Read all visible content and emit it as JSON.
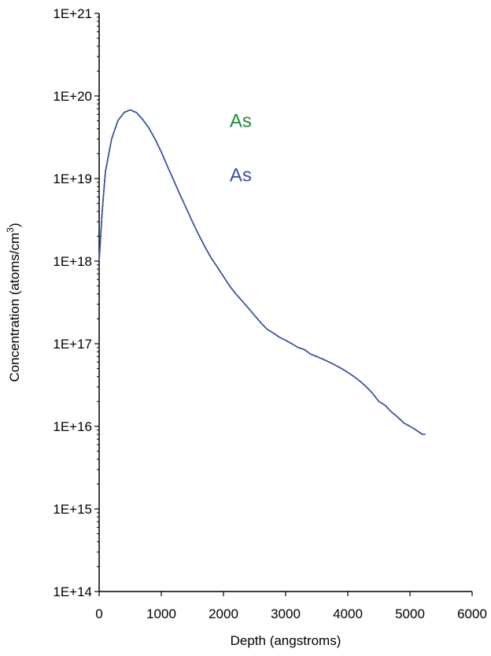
{
  "chart_data": {
    "type": "line",
    "title": "",
    "xlabel": "Depth (angstroms)",
    "ylabel": "Concentration (atoms/cm",
    "ylabel_superscript": "3",
    "ylabel_suffix": ")",
    "x_scale": "linear",
    "y_scale": "log",
    "xlim": [
      0,
      6000
    ],
    "ylim": [
      100000000000000.0,
      1e+21
    ],
    "x_ticks": [
      0,
      1000,
      2000,
      3000,
      4000,
      5000,
      6000
    ],
    "x_tick_labels": [
      "0",
      "1000",
      "2000",
      "3000",
      "4000",
      "5000",
      "6000"
    ],
    "y_ticks": [
      100000000000000.0,
      1000000000000000.0,
      1e+16,
      1e+17,
      1e+18,
      1e+19,
      1e+20,
      1e+21
    ],
    "y_tick_labels": [
      "1E+14",
      "1E+15",
      "1E+16",
      "1E+17",
      "1E+18",
      "1E+19",
      "1E+20",
      "1E+21"
    ],
    "grid": false,
    "legend": "inline labels",
    "series": [
      {
        "name": "As",
        "color": "#1e8a3c",
        "x": [
          0,
          50,
          100,
          200,
          300,
          400,
          500,
          600,
          700,
          800,
          900,
          1000,
          1100,
          1200,
          1300,
          1400,
          1500,
          1600,
          1700,
          1800,
          1900,
          2000,
          2100,
          2200,
          2300,
          2400,
          2500,
          2600,
          2700,
          2800,
          2900,
          3000,
          3100,
          3200,
          3300,
          3400,
          3500,
          3600,
          3700,
          3800,
          3900,
          4000,
          4100,
          4200,
          4300,
          4400,
          4500,
          4600,
          4700,
          4800,
          4900,
          5000,
          5100,
          5200
        ],
        "y": [
          1e+18,
          4e+18,
          1.2e+19,
          3e+19,
          5e+19,
          6.3e+19,
          6.8e+19,
          6.3e+19,
          5.2e+19,
          4.1e+19,
          3e+19,
          2.1e+19,
          1.4e+19,
          9.5e+18,
          6.4e+18,
          4.4e+18,
          3e+18,
          2.1e+18,
          1.5e+18,
          1.1e+18,
          8.5e+17,
          6.5e+17,
          5e+17,
          4e+17,
          3.3e+17,
          2.7e+17,
          2.2e+17,
          1.8e+17,
          1.5e+17,
          1.35e+17,
          1.2e+17,
          1.1e+17,
          1e+17,
          9e+16,
          8.5e+16,
          7.5e+16,
          7e+16,
          6.5e+16,
          6e+16,
          5.5e+16,
          5e+16,
          4.5e+16,
          4e+16,
          3.5e+16,
          3e+16,
          2.5e+16,
          2e+16,
          1.8e+16,
          1.5e+16,
          1.3e+16,
          1.1e+16,
          1e+16,
          9000000000000000.0,
          8000000000000000.0
        ]
      },
      {
        "name": "As",
        "color": "#3a4fa3",
        "x": [
          0,
          50,
          100,
          200,
          300,
          400,
          500,
          600,
          700,
          800,
          900,
          1000,
          1100,
          1200,
          1300,
          1400,
          1500,
          1600,
          1700,
          1800,
          1900,
          2000,
          2100,
          2200,
          2300,
          2400,
          2500,
          2600,
          2700,
          2800,
          2900,
          3000,
          3100,
          3200,
          3300,
          3400,
          3500,
          3600,
          3700,
          3800,
          3900,
          4000,
          4100,
          4200,
          4300,
          4400,
          4500,
          4600,
          4700,
          4800,
          4900,
          5000,
          5100,
          5200,
          5250
        ],
        "y": [
          1e+18,
          4e+18,
          1.2e+19,
          3e+19,
          5e+19,
          6.3e+19,
          6.8e+19,
          6.3e+19,
          5.2e+19,
          4.1e+19,
          3e+19,
          2.1e+19,
          1.4e+19,
          9.5e+18,
          6.4e+18,
          4.4e+18,
          3e+18,
          2.1e+18,
          1.5e+18,
          1.1e+18,
          8.5e+17,
          6.5e+17,
          5e+17,
          4e+17,
          3.3e+17,
          2.7e+17,
          2.2e+17,
          1.8e+17,
          1.5e+17,
          1.35e+17,
          1.2e+17,
          1.1e+17,
          1e+17,
          9e+16,
          8.5e+16,
          7.5e+16,
          7e+16,
          6.5e+16,
          6e+16,
          5.5e+16,
          5e+16,
          4.5e+16,
          4e+16,
          3.5e+16,
          3e+16,
          2.5e+16,
          2e+16,
          1.8e+16,
          1.5e+16,
          1.3e+16,
          1.1e+16,
          1e+16,
          9000000000000000.0,
          8000000000000000.0,
          8000000000000000.0
        ]
      }
    ],
    "annotations": [
      {
        "text": "As",
        "series": 0,
        "x": 2100,
        "y": 5e+19
      },
      {
        "text": "As",
        "series": 1,
        "x": 2100,
        "y": 1.1e+19
      }
    ]
  }
}
